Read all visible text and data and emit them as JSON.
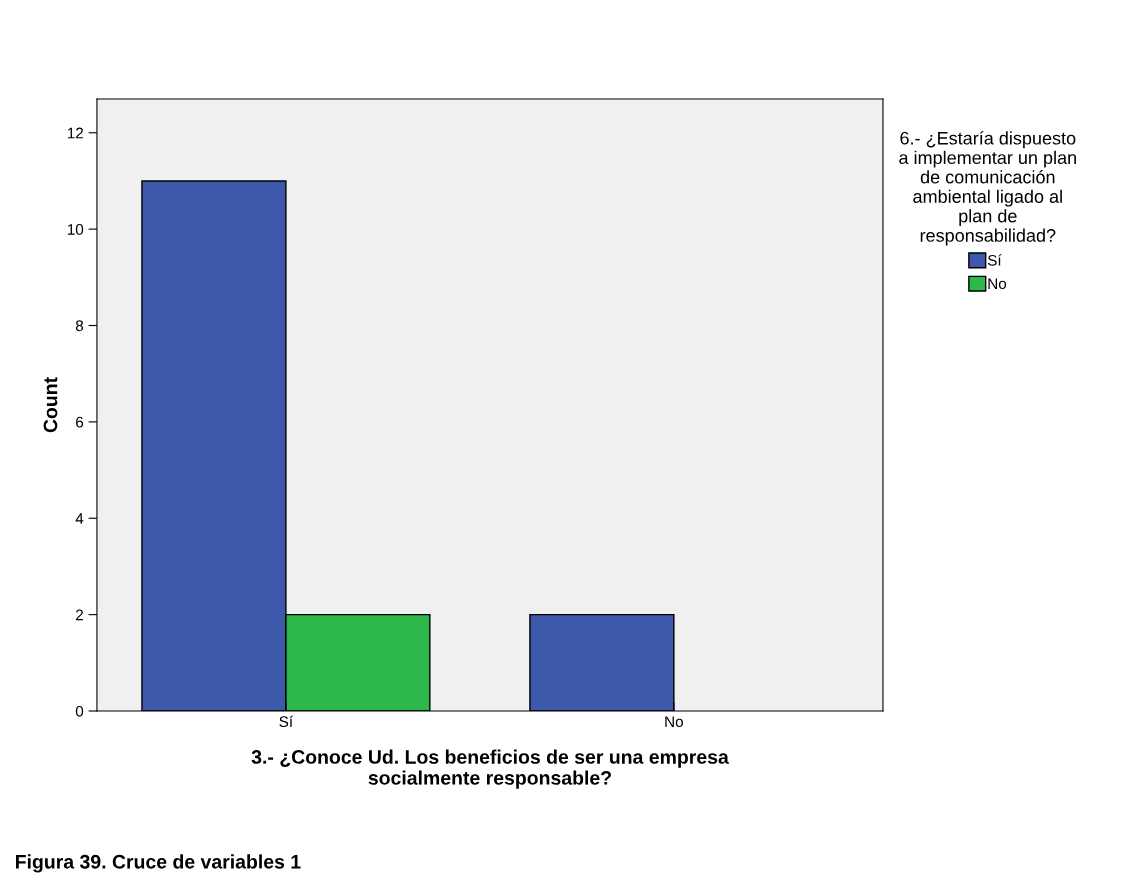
{
  "chart_data": {
    "type": "bar",
    "xlabel": "3.- ¿Conoce Ud. Los beneficios de ser una empresa\nsocialmente responsable?",
    "ylabel": "Count",
    "legend_title": "6.- ¿Estaría dispuesto\na implementar un plan\nde comunicación\nambiental ligado al\nplan de\nresponsabilidad?",
    "categories": [
      "Sí",
      "No"
    ],
    "series": [
      {
        "name": "Sí",
        "color": "#3e58ac",
        "values": [
          11,
          2
        ]
      },
      {
        "name": "No",
        "color": "#2db84b",
        "values": [
          2,
          null
        ]
      }
    ],
    "ylim": [
      0,
      12.7
    ],
    "yticks": [
      0,
      2,
      4,
      6,
      8,
      10,
      12
    ],
    "grid": false,
    "legend": "right",
    "annotations": [
      "Figura 39. Cruce de variables 1"
    ]
  }
}
